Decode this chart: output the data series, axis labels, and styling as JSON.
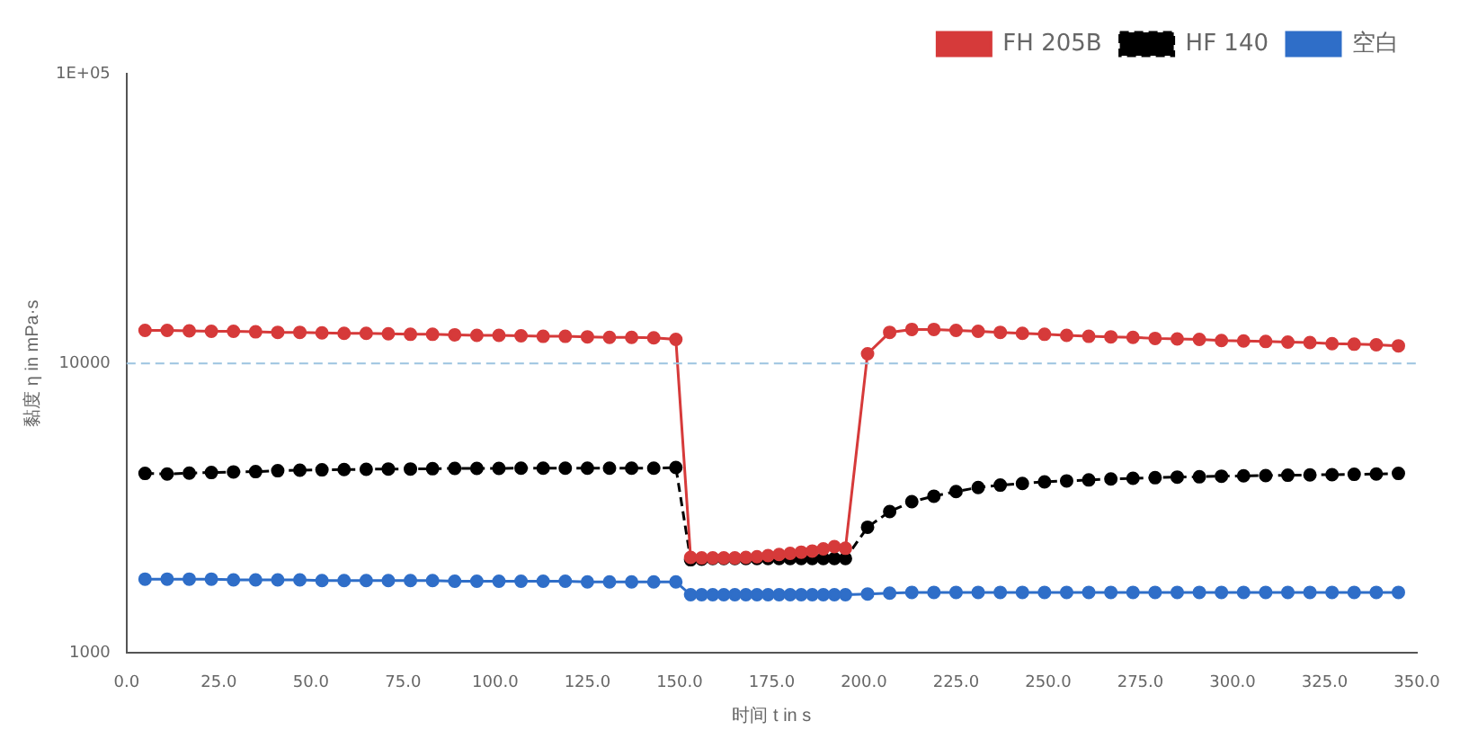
{
  "chart_data": {
    "type": "line",
    "xlabel": "时间 t in s",
    "ylabel": "黏度 η in mPa·s",
    "log": "y",
    "ref_lines": [
      {
        "axis": "y",
        "value": 10000,
        "color": "#9cc3e0",
        "line_style": "dashed"
      }
    ],
    "legend": "top right",
    "marker": "circle",
    "xlim": [
      0,
      350
    ],
    "xticks": [
      {
        "value": 0,
        "label": "0.0"
      },
      {
        "value": 25,
        "label": "25.0"
      },
      {
        "value": 50,
        "label": "50.0"
      },
      {
        "value": 75,
        "label": "75.0"
      },
      {
        "value": 100,
        "label": "100.0"
      },
      {
        "value": 125,
        "label": "125.0"
      },
      {
        "value": 150,
        "label": "150.0"
      },
      {
        "value": 175,
        "label": "175.0"
      },
      {
        "value": 200,
        "label": "200.0"
      },
      {
        "value": 225,
        "label": "225.0"
      },
      {
        "value": 250,
        "label": "250.0"
      },
      {
        "value": 275,
        "label": "275.0"
      },
      {
        "value": 300,
        "label": "300.0"
      },
      {
        "value": 325,
        "label": "325.0"
      },
      {
        "value": 350,
        "label": "350.0"
      }
    ],
    "ylim": [
      1000,
      100000
    ],
    "yticks": [
      1000,
      10000,
      {
        "value": 100000,
        "label": "1E+05"
      }
    ],
    "x": [
      5,
      11,
      17,
      23,
      29,
      35,
      41,
      47,
      53,
      59,
      65,
      71,
      77,
      83,
      89,
      95,
      101,
      107,
      113,
      119,
      125,
      131,
      137,
      143,
      149,
      153,
      156,
      159,
      162,
      165,
      168,
      171,
      174,
      177,
      180,
      183,
      186,
      189,
      192,
      195,
      201,
      207,
      213,
      219,
      225,
      231,
      237,
      243,
      249,
      255,
      261,
      267,
      273,
      279,
      285,
      291,
      297,
      303,
      309,
      315,
      321,
      327,
      333,
      339,
      345
    ],
    "series": [
      {
        "name": "FH 205B",
        "color": "#d63a3a",
        "line_style": "solid",
        "values": [
          13000,
          13000,
          12950,
          12900,
          12900,
          12850,
          12800,
          12800,
          12750,
          12700,
          12700,
          12650,
          12600,
          12600,
          12550,
          12500,
          12500,
          12450,
          12400,
          12400,
          12350,
          12300,
          12300,
          12250,
          12100,
          2140,
          2130,
          2130,
          2130,
          2130,
          2140,
          2150,
          2170,
          2190,
          2210,
          2230,
          2250,
          2290,
          2330,
          2300,
          10800,
          12800,
          13100,
          13100,
          13000,
          12900,
          12800,
          12700,
          12600,
          12500,
          12400,
          12350,
          12300,
          12200,
          12150,
          12100,
          12000,
          11950,
          11900,
          11850,
          11800,
          11700,
          11650,
          11600,
          11500
        ]
      },
      {
        "name": "HF 140",
        "color": "#000000",
        "line_style": "dashed",
        "values": [
          4170,
          4150,
          4180,
          4200,
          4220,
          4230,
          4260,
          4280,
          4290,
          4300,
          4310,
          4320,
          4320,
          4330,
          4340,
          4340,
          4340,
          4350,
          4350,
          4350,
          4350,
          4350,
          4350,
          4350,
          4370,
          2100,
          2110,
          2120,
          2120,
          2120,
          2120,
          2120,
          2120,
          2120,
          2120,
          2120,
          2120,
          2120,
          2120,
          2120,
          2720,
          3080,
          3330,
          3480,
          3610,
          3730,
          3800,
          3850,
          3900,
          3930,
          3960,
          3990,
          4010,
          4030,
          4050,
          4060,
          4080,
          4090,
          4100,
          4110,
          4120,
          4130,
          4140,
          4150,
          4170
        ]
      },
      {
        "name": "空白",
        "color": "#2f6ec8",
        "line_style": "solid",
        "values": [
          1800,
          1800,
          1800,
          1800,
          1790,
          1790,
          1790,
          1790,
          1780,
          1780,
          1780,
          1780,
          1780,
          1780,
          1770,
          1770,
          1770,
          1770,
          1770,
          1770,
          1760,
          1760,
          1760,
          1760,
          1760,
          1590,
          1590,
          1590,
          1590,
          1590,
          1590,
          1590,
          1590,
          1590,
          1590,
          1590,
          1590,
          1590,
          1590,
          1590,
          1600,
          1610,
          1620,
          1620,
          1620,
          1620,
          1620,
          1620,
          1620,
          1620,
          1620,
          1620,
          1620,
          1620,
          1620,
          1620,
          1620,
          1620,
          1620,
          1620,
          1620,
          1620,
          1620,
          1620,
          1620
        ]
      }
    ]
  }
}
